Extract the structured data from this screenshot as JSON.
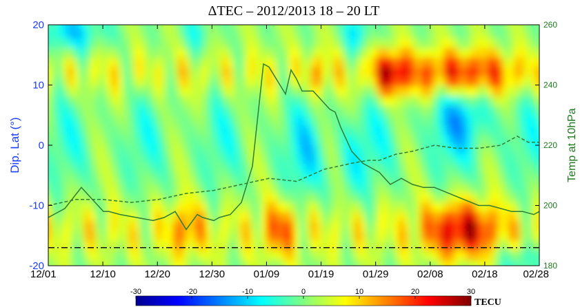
{
  "chart_data": {
    "type": "heatmap",
    "title": "ΔTEC – 2012/2013  18 – 20 LT",
    "xlabel": "",
    "ylabel": "Dip. Lat (°)",
    "y2label": "Temp at 10hPa",
    "x_ticks": [
      "12/01",
      "12/10",
      "12/20",
      "12/30",
      "01/09",
      "01/19",
      "01/29",
      "02/08",
      "02/18",
      "02/28"
    ],
    "xlim_days": [
      0,
      89
    ],
    "ylim": [
      -20,
      20
    ],
    "y_ticks": [
      "20",
      "10",
      "0",
      "-10",
      "-20"
    ],
    "y2lim": [
      180,
      260
    ],
    "y2_ticks": [
      "260",
      "240",
      "220",
      "200",
      "180"
    ],
    "colorbar": {
      "range": [
        -30,
        30
      ],
      "ticks": [
        "-30",
        "-20",
        "-10",
        "0",
        "10",
        "20",
        "30"
      ],
      "unit": "TECU",
      "colors": [
        "#00008f",
        "#0000ff",
        "#0080ff",
        "#00ffff",
        "#80ff80",
        "#ffff00",
        "#ff8000",
        "#ff0000",
        "#800000"
      ]
    },
    "reference_line_lat": -17,
    "series": [
      {
        "style": "solid",
        "color": "#2e7d32",
        "x": [
          0,
          3,
          6,
          9,
          10,
          11,
          13,
          16,
          19,
          21,
          23,
          25,
          27,
          28,
          30,
          31,
          33,
          35,
          37,
          38,
          39,
          40,
          42,
          43,
          44,
          45,
          46,
          48,
          49,
          51,
          52,
          53,
          55,
          57,
          60,
          62,
          64,
          66,
          68,
          70,
          74,
          78,
          80,
          82,
          84,
          86,
          88,
          89
        ],
        "y": [
          196,
          199,
          206,
          200,
          198,
          198,
          197,
          196,
          195,
          196,
          198,
          192,
          197,
          196,
          195,
          196,
          197,
          201,
          213,
          230,
          247,
          246,
          240,
          237,
          245,
          242,
          238,
          238,
          236,
          232,
          231,
          226,
          218,
          214,
          211,
          207,
          209,
          207,
          206,
          206,
          203,
          200,
          200,
          199,
          198,
          198,
          197,
          198
        ]
      },
      {
        "style": "dashed",
        "color": "#2e7d32",
        "x": [
          0,
          5,
          10,
          15,
          20,
          25,
          30,
          35,
          40,
          45,
          50,
          55,
          58,
          60,
          63,
          66,
          70,
          74,
          78,
          82,
          85,
          87,
          89
        ],
        "y": [
          200,
          202,
          202,
          201,
          202,
          204,
          205,
          207,
          209,
          208,
          212,
          214,
          215,
          215,
          217,
          218,
          220,
          219,
          219,
          220,
          223,
          221,
          221
        ]
      }
    ]
  }
}
